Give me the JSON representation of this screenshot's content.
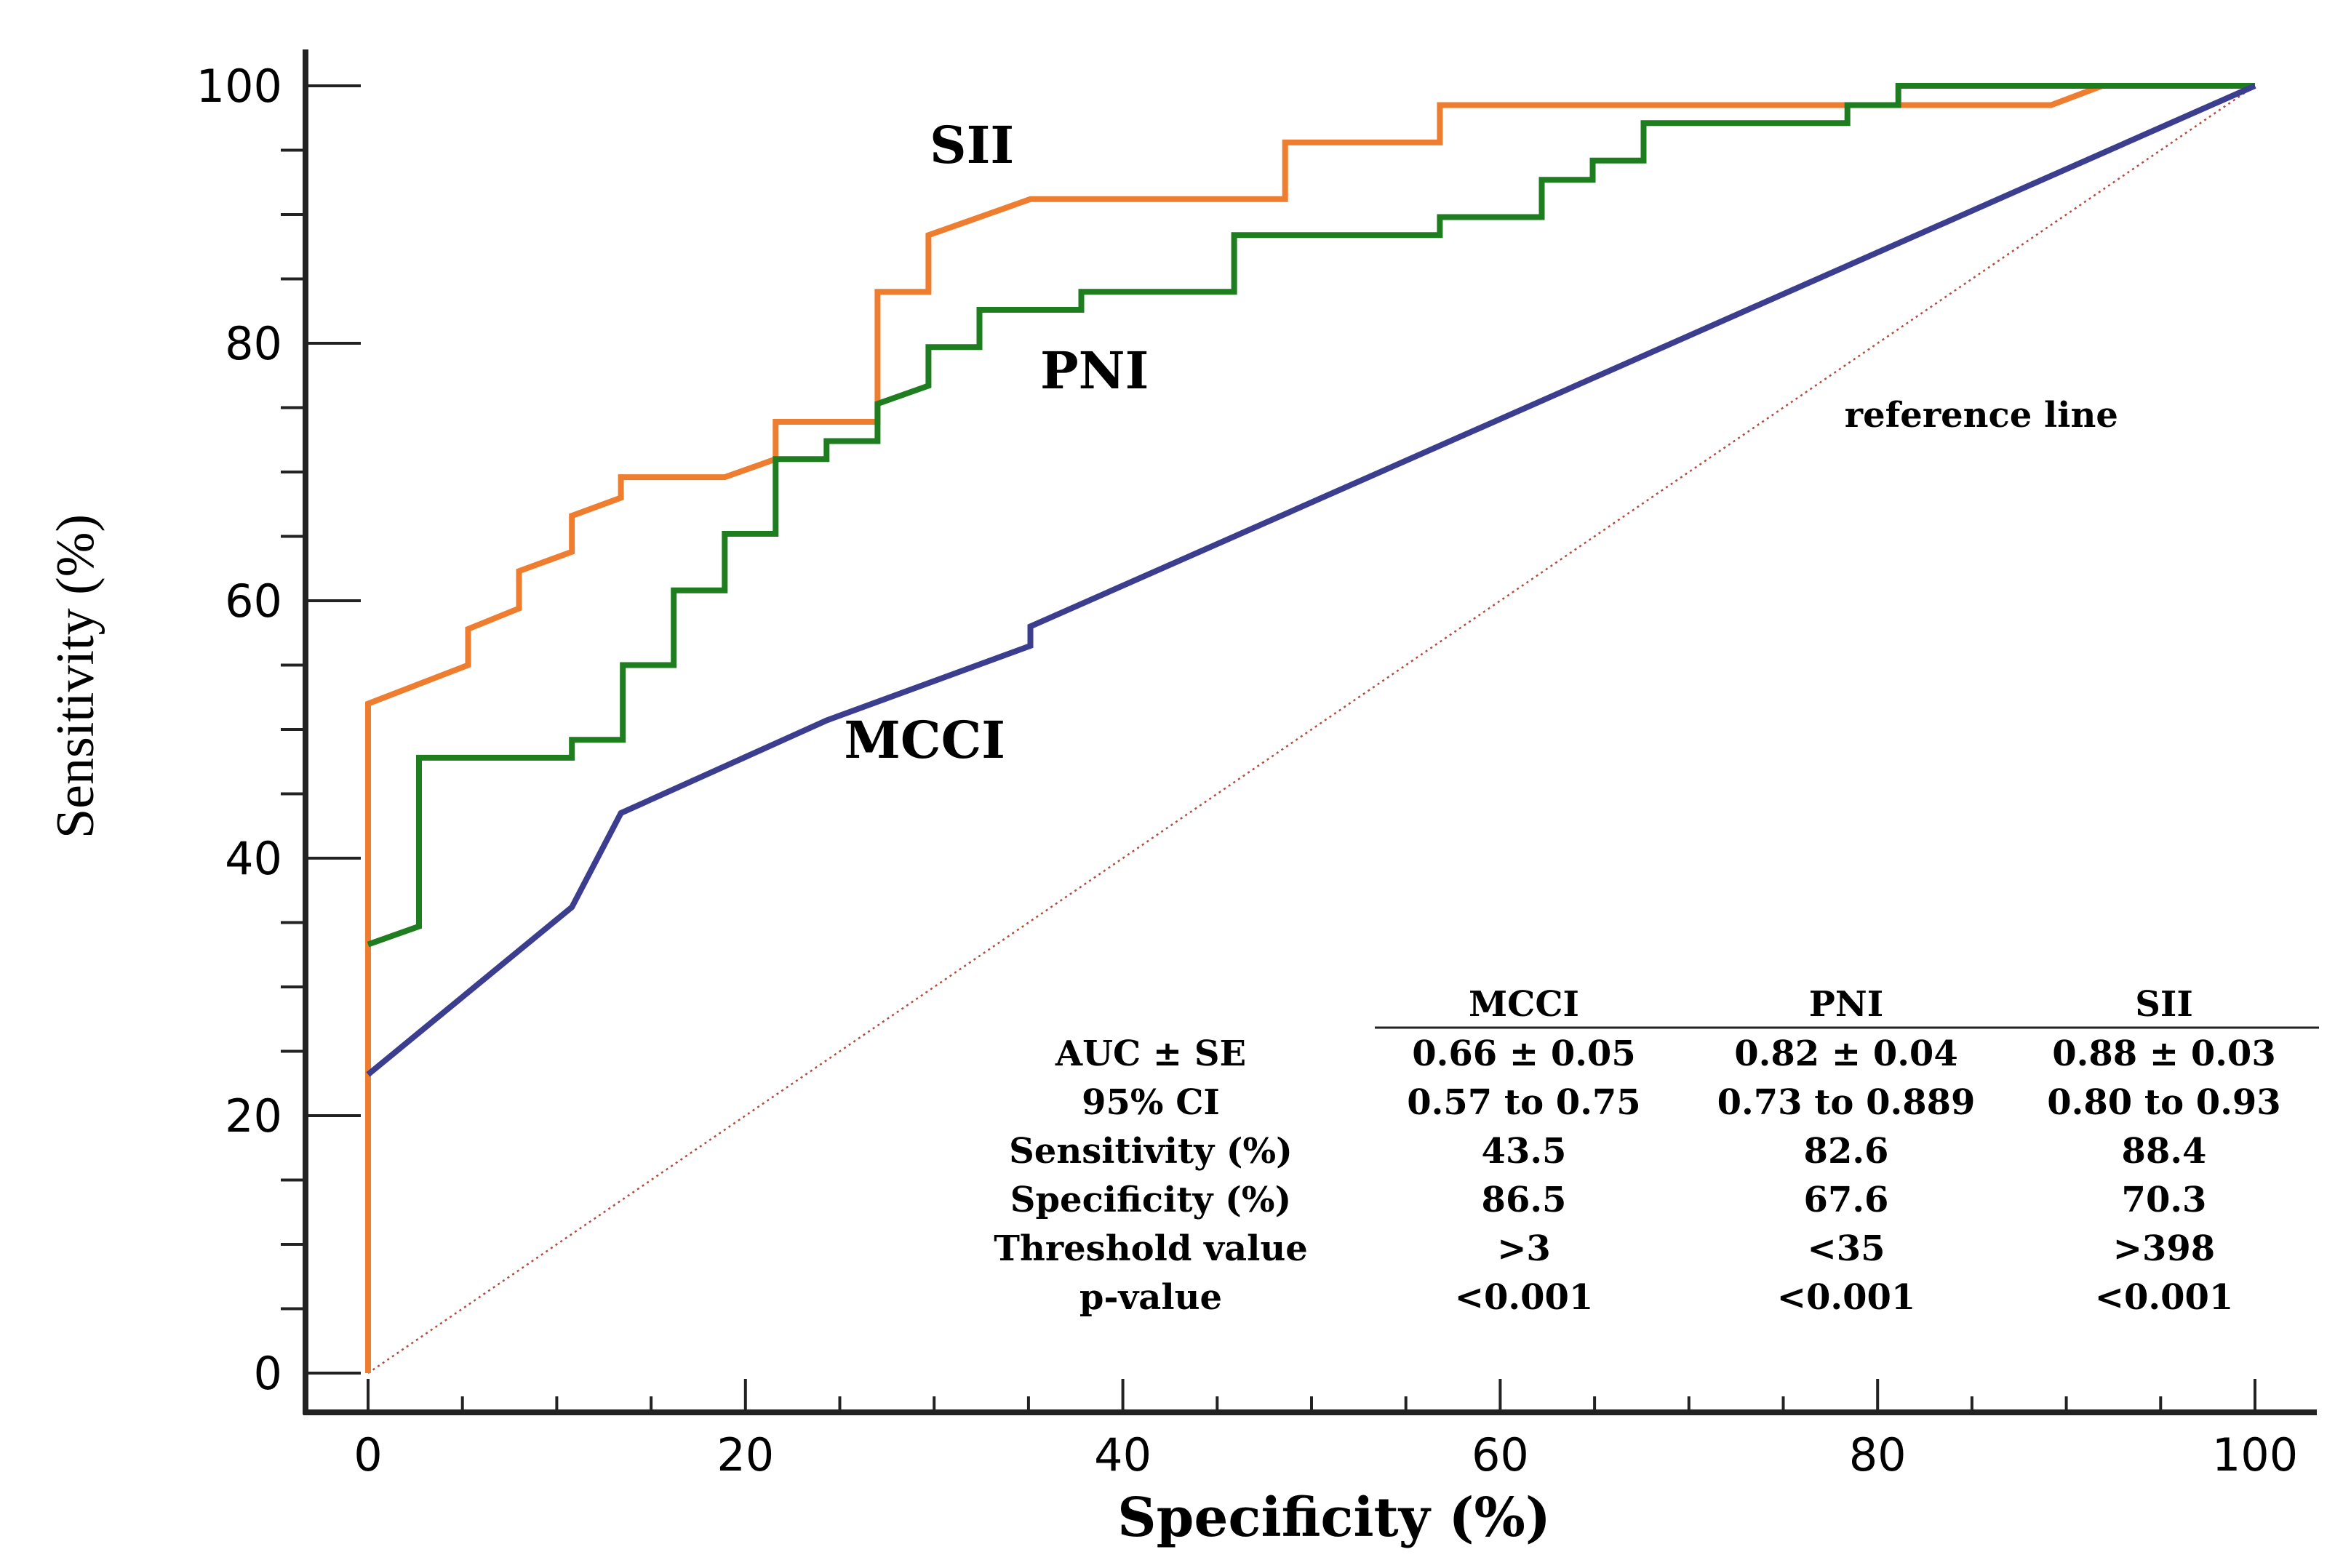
{
  "chart_data": {
    "type": "line",
    "title": "",
    "xlabel": "Specificity (%)",
    "ylabel": "Sensitivity (%)",
    "xlim": [
      0,
      100
    ],
    "ylim": [
      0,
      100
    ],
    "x_ticks": [
      0,
      20,
      40,
      60,
      80,
      100
    ],
    "y_ticks": [
      0,
      20,
      40,
      60,
      80,
      100
    ],
    "grid": false,
    "reference_label": "reference line",
    "series": [
      {
        "name": "SII",
        "color": "#ee7d2f",
        "points": [
          [
            0,
            0
          ],
          [
            0,
            52
          ],
          [
            5.3,
            55
          ],
          [
            5.3,
            57.8
          ],
          [
            8,
            59.4
          ],
          [
            8,
            62.3
          ],
          [
            10.8,
            63.8
          ],
          [
            10.8,
            66.6
          ],
          [
            13.4,
            68
          ],
          [
            13.4,
            69.6
          ],
          [
            18.9,
            69.6
          ],
          [
            21.6,
            71
          ],
          [
            21.6,
            73.9
          ],
          [
            27,
            73.9
          ],
          [
            27,
            84
          ],
          [
            29.7,
            84
          ],
          [
            29.7,
            88.4
          ],
          [
            35.1,
            91.2
          ],
          [
            48.6,
            91.2
          ],
          [
            48.6,
            95.6
          ],
          [
            56.8,
            95.6
          ],
          [
            56.8,
            98.5
          ],
          [
            89.2,
            98.5
          ],
          [
            91.9,
            100
          ],
          [
            100,
            100
          ]
        ]
      },
      {
        "name": "PNI",
        "color": "#1e7d1e",
        "points": [
          [
            0,
            33.3
          ],
          [
            2.7,
            34.7
          ],
          [
            2.7,
            47.8
          ],
          [
            10.8,
            47.8
          ],
          [
            10.8,
            49.2
          ],
          [
            13.5,
            49.2
          ],
          [
            13.5,
            55
          ],
          [
            16.2,
            55
          ],
          [
            16.2,
            60.8
          ],
          [
            18.9,
            60.8
          ],
          [
            18.9,
            65.2
          ],
          [
            21.6,
            65.2
          ],
          [
            21.6,
            71
          ],
          [
            24.3,
            71
          ],
          [
            24.3,
            72.4
          ],
          [
            27,
            72.4
          ],
          [
            27,
            75.3
          ],
          [
            29.7,
            76.7
          ],
          [
            29.7,
            79.7
          ],
          [
            32.4,
            79.7
          ],
          [
            32.4,
            82.6
          ],
          [
            37.8,
            82.6
          ],
          [
            37.8,
            84
          ],
          [
            45.9,
            84
          ],
          [
            45.9,
            88.4
          ],
          [
            56.8,
            88.4
          ],
          [
            56.8,
            89.8
          ],
          [
            62.2,
            89.8
          ],
          [
            62.2,
            92.7
          ],
          [
            64.9,
            92.7
          ],
          [
            64.9,
            94.2
          ],
          [
            67.6,
            94.2
          ],
          [
            67.6,
            97.1
          ],
          [
            78.4,
            97.1
          ],
          [
            78.4,
            98.5
          ],
          [
            81.1,
            98.5
          ],
          [
            81.1,
            100
          ],
          [
            100,
            100
          ]
        ]
      },
      {
        "name": "MCCI",
        "color": "#3b3e8f",
        "points": [
          [
            0,
            23.2
          ],
          [
            10.8,
            36.2
          ],
          [
            13.4,
            43.5
          ],
          [
            24.3,
            50.7
          ],
          [
            35.1,
            56.5
          ],
          [
            35.1,
            58
          ],
          [
            100,
            100
          ]
        ]
      }
    ],
    "series_labels": [
      {
        "name": "SII",
        "x": 32,
        "y": 94
      },
      {
        "name": "PNI",
        "x": 38.5,
        "y": 76.5
      },
      {
        "name": "MCCI",
        "x": 29.5,
        "y": 47.8
      }
    ],
    "stats_table": {
      "columns": [
        "MCCI",
        "PNI",
        "SII"
      ],
      "rows": [
        {
          "label": "AUC ± SE",
          "values": [
            "0.66 ± 0.05",
            "0.82 ± 0.04",
            "0.88 ± 0.03"
          ]
        },
        {
          "label": "95% CI",
          "values": [
            "0.57 to 0.75",
            "0.73 to 0.889",
            "0.80 to 0.93"
          ]
        },
        {
          "label": "Sensitivity (%)",
          "values": [
            "43.5",
            "82.6",
            "88.4"
          ]
        },
        {
          "label": "Specificity (%)",
          "values": [
            "86.5",
            "67.6",
            "70.3"
          ]
        },
        {
          "label": "Threshold value",
          "values": [
            ">3",
            "<35",
            ">398"
          ]
        },
        {
          "label": "p-value",
          "values": [
            "<0.001",
            "<0.001",
            "<0.001"
          ]
        }
      ]
    }
  }
}
